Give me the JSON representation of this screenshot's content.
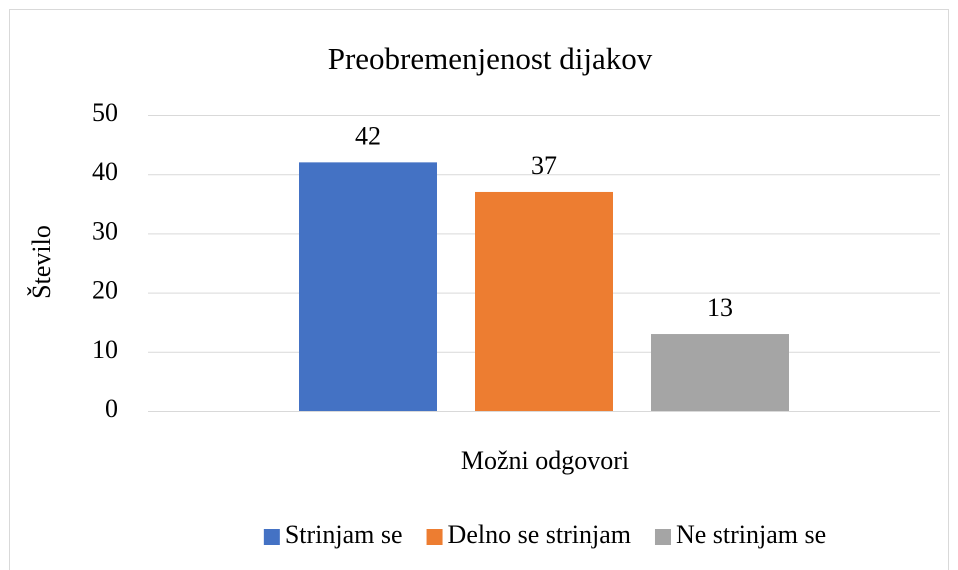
{
  "chart_data": {
    "type": "bar",
    "title": "Preobremenjenost dijakov",
    "categories": [
      null
    ],
    "series": [
      {
        "name": "Strinjam se",
        "color": "#4472c4",
        "values": [
          42
        ]
      },
      {
        "name": "Delno se strinjam",
        "color": "#ed7d31",
        "values": [
          37
        ]
      },
      {
        "name": "Ne strinjam se",
        "color": "#a5a5a5",
        "values": [
          13
        ]
      }
    ],
    "xlabel": "Možni odgovori",
    "ylabel": "Število",
    "ylim": [
      0,
      50
    ],
    "yticks": [
      0,
      10,
      20,
      30,
      40,
      50
    ],
    "grid": true,
    "legend": "bottom"
  }
}
